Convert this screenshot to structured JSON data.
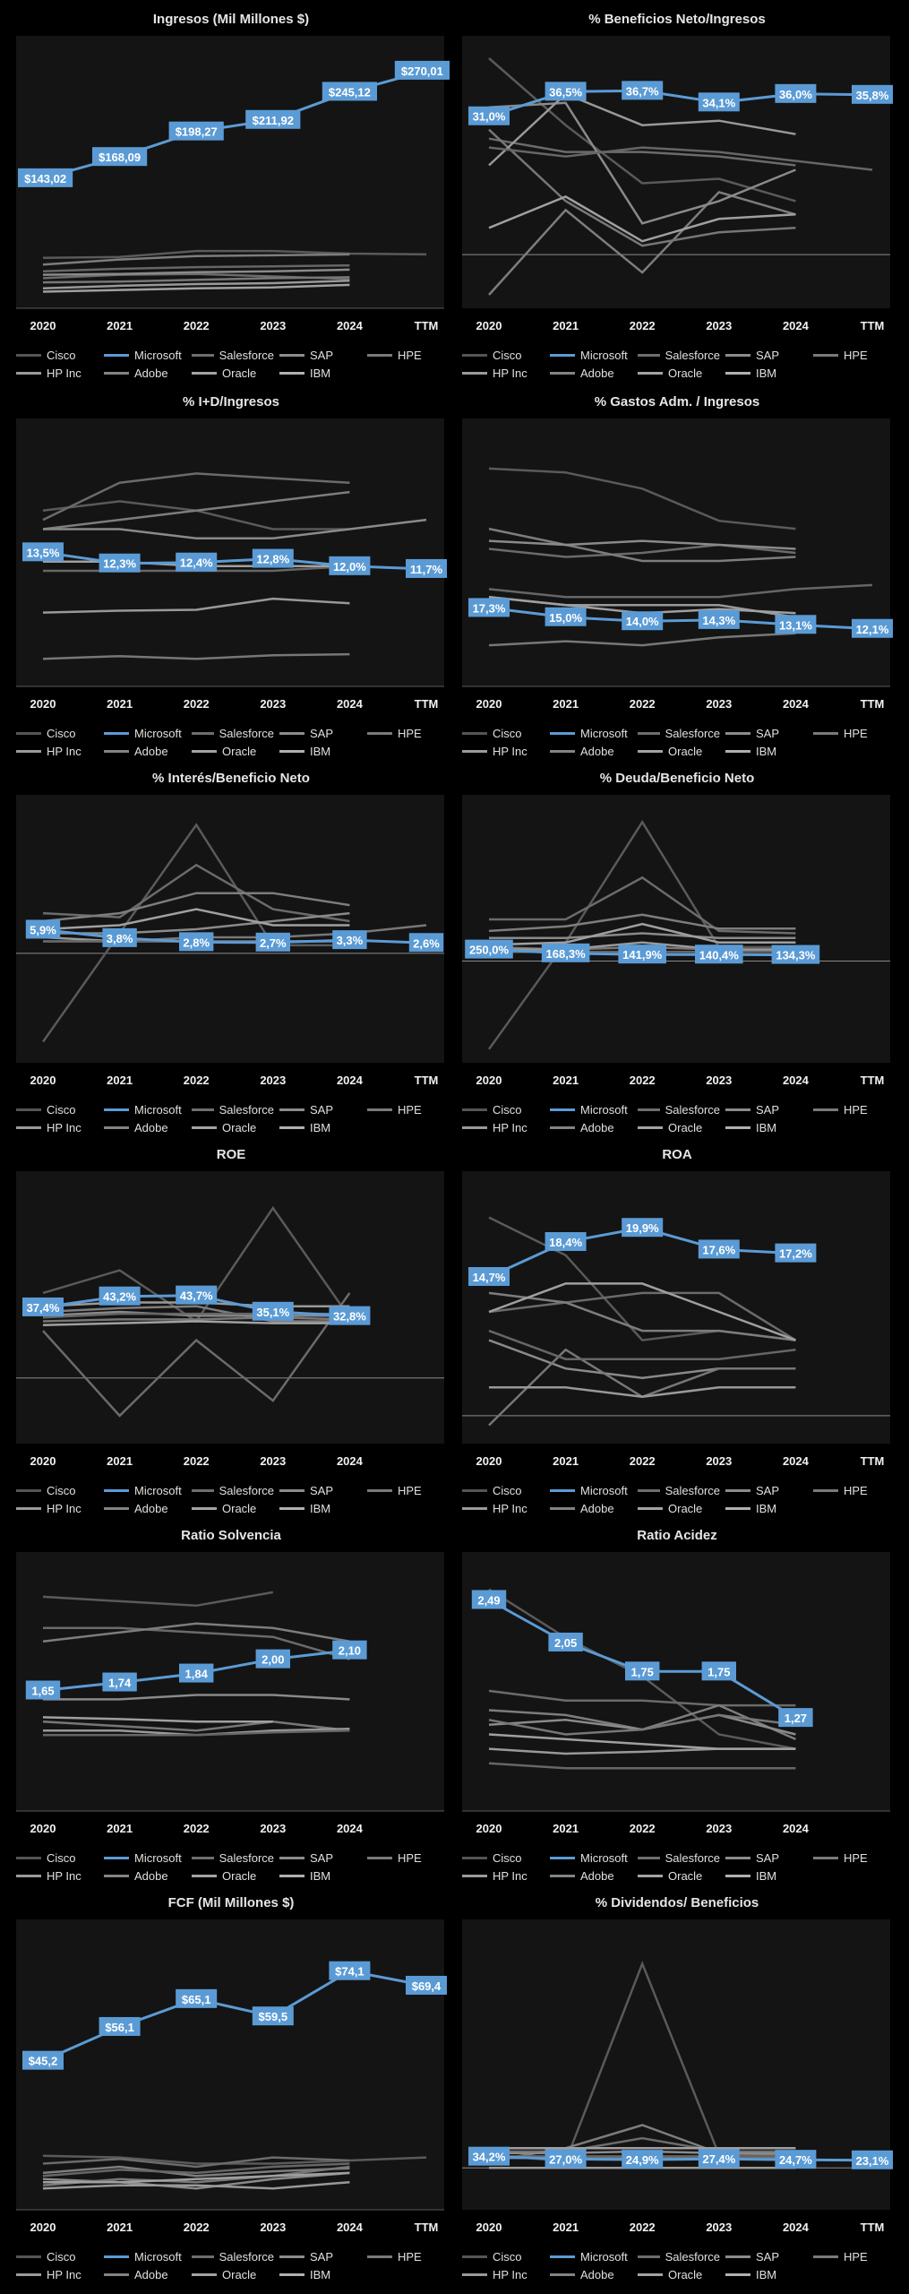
{
  "legend": {
    "series": [
      {
        "name": "Cisco",
        "color": "#555555"
      },
      {
        "name": "Microsoft",
        "color": "#5b9bd5"
      },
      {
        "name": "Salesforce",
        "color": "#6e6e6e"
      },
      {
        "name": "SAP",
        "color": "#8c8c8c"
      },
      {
        "name": "HPE",
        "color": "#7a7a7a"
      },
      {
        "name": "HP Inc",
        "color": "#9a9a9a"
      },
      {
        "name": "Adobe",
        "color": "#838383"
      },
      {
        "name": "Oracle",
        "color": "#a3a3a3"
      },
      {
        "name": "IBM",
        "color": "#b0b0b0"
      }
    ]
  },
  "colors": {
    "microsoft": "#5b9bd5",
    "label_bg": "#5b9bd5",
    "plot_bg": "#141414",
    "grey": "#8a8a8a"
  },
  "chart_data": [
    {
      "type": "line",
      "title": "Ingresos (Mil Millones $)",
      "x": [
        "2020",
        "2021",
        "2022",
        "2023",
        "2024",
        "TTM"
      ],
      "ylim": [
        0,
        290
      ],
      "highlight": {
        "name": "Microsoft",
        "values": [
          143.02,
          168.09,
          198.27,
          211.92,
          245.12,
          270.01
        ],
        "labels": [
          "$143,02",
          "$168,09",
          "$198,27",
          "$211,92",
          "$245,12",
          "$270,01"
        ]
      },
      "others": [
        [
          49,
          50,
          57,
          57,
          54,
          53
        ],
        [
          25,
          29,
          30,
          27,
          24,
          null
        ],
        [
          41,
          47,
          51,
          52,
          53,
          null
        ],
        [
          29,
          30,
          32,
          33,
          35,
          null
        ],
        [
          20,
          21,
          23,
          25,
          26,
          null
        ],
        [
          13,
          16,
          18,
          19,
          22,
          null
        ],
        [
          33,
          36,
          38,
          39,
          40,
          null
        ],
        [
          9,
          11,
          13,
          14,
          17,
          null
        ]
      ]
    },
    {
      "type": "line",
      "title": "% Beneficios Neto/Ingresos",
      "x": [
        "2020",
        "2021",
        "2022",
        "2023",
        "2024",
        "TTM"
      ],
      "ylim": [
        -10,
        45
      ],
      "highlight": {
        "name": "Microsoft",
        "values": [
          31.0,
          36.5,
          36.7,
          34.1,
          36.0,
          35.8
        ],
        "labels": [
          "31,0%",
          "36,5%",
          "36,7%",
          "34,1%",
          "36,0%",
          "35,8%"
        ]
      },
      "others": [
        [
          44,
          29,
          16,
          17,
          12,
          null
        ],
        [
          26,
          23,
          23,
          22,
          20,
          null
        ],
        [
          -9,
          10,
          -4,
          14,
          9,
          null
        ],
        [
          33,
          34,
          7,
          12,
          19,
          null
        ],
        [
          28,
          12,
          2,
          5,
          6,
          null
        ],
        [
          20,
          36,
          29,
          30,
          27,
          null
        ],
        [
          24,
          22,
          24,
          23,
          21,
          19
        ],
        [
          6,
          13,
          3,
          8,
          9,
          null
        ]
      ]
    },
    {
      "type": "line",
      "title": "% I+D/Ingresos",
      "x": [
        "2020",
        "2021",
        "2022",
        "2023",
        "2024",
        "TTM"
      ],
      "ylim": [
        0,
        26
      ],
      "highlight": {
        "name": "Microsoft",
        "values": [
          13.5,
          12.3,
          12.4,
          12.8,
          12.0,
          11.7
        ],
        "labels": [
          "13,5%",
          "12,3%",
          "12,4%",
          "12,8%",
          "12,0%",
          "11,7%"
        ]
      },
      "others": [
        [
          18,
          19,
          18,
          16,
          16,
          null
        ],
        [
          17,
          21,
          22,
          21.5,
          21,
          null
        ],
        [
          16,
          17,
          18,
          19,
          20,
          null
        ],
        [
          16,
          16,
          15,
          15,
          16,
          17
        ],
        [
          2,
          2.3,
          2,
          2.4,
          2.5,
          null
        ],
        [
          7,
          7.2,
          7.3,
          8.5,
          8,
          null
        ],
        [
          11.5,
          11.5,
          11.5,
          11.5,
          12,
          null
        ],
        [
          12.5,
          12.5,
          12,
          12,
          12,
          null
        ]
      ]
    },
    {
      "type": "line",
      "title": "% Gastos Adm. / Ingresos",
      "x": [
        "2020",
        "2021",
        "2022",
        "2023",
        "2024",
        "TTM"
      ],
      "ylim": [
        0,
        60
      ],
      "highlight": {
        "name": "Microsoft",
        "values": [
          17.3,
          15.0,
          14.0,
          14.3,
          13.1,
          12.1
        ],
        "labels": [
          "17,3%",
          "15,0%",
          "14,0%",
          "14,3%",
          "13,1%",
          "12,1%"
        ]
      },
      "others": [
        [
          52,
          51,
          47,
          39,
          37,
          null
        ],
        [
          32,
          30,
          31,
          33,
          31,
          null
        ],
        [
          37,
          33,
          29,
          29,
          30,
          null
        ],
        [
          34,
          33,
          34,
          33,
          32,
          null
        ],
        [
          8,
          9,
          8,
          10,
          11,
          null
        ],
        [
          20,
          18,
          18,
          18,
          15,
          null
        ],
        [
          22,
          20,
          20,
          20,
          22,
          23
        ],
        [
          20,
          18,
          16,
          17,
          16,
          null
        ]
      ]
    },
    {
      "type": "line",
      "title": "% Interés/Beneficio Neto",
      "x": [
        "2020",
        "2021",
        "2022",
        "2023",
        "2024",
        "TTM"
      ],
      "ylim": [
        -25,
        35
      ],
      "highlight": {
        "name": "Microsoft",
        "values": [
          5.9,
          3.8,
          2.8,
          2.7,
          3.3,
          2.6
        ],
        "labels": [
          "5,9%",
          "3,8%",
          "2,8%",
          "2,7%",
          "3,3%",
          "2,6%"
        ]
      },
      "others": [
        [
          -22,
          5,
          32,
          2,
          2,
          null
        ],
        [
          10,
          9,
          22,
          11,
          8,
          null
        ],
        [
          8,
          10,
          15,
          15,
          12,
          null
        ],
        [
          5,
          5,
          6,
          8,
          10,
          null
        ],
        [
          3,
          3,
          4,
          4,
          5,
          7
        ],
        [
          4,
          3,
          3,
          3,
          3,
          null
        ],
        [
          3,
          3,
          3,
          3,
          3,
          null
        ],
        [
          6,
          7,
          11,
          7,
          7,
          null
        ]
      ]
    },
    {
      "type": "line",
      "title": "% Deuda/Beneficio Neto",
      "x": [
        "2020",
        "2021",
        "2022",
        "2023",
        "2024",
        "TTM"
      ],
      "ylim": [
        -2000,
        3200
      ],
      "highlight": {
        "name": "Microsoft",
        "values": [
          250.0,
          168.3,
          141.9,
          140.4,
          134.3
        ],
        "labels": [
          "250,0%",
          "168,3%",
          "141,9%",
          "140,4%",
          "134,3%"
        ]
      },
      "others": [
        [
          -1900,
          400,
          3000,
          300,
          300,
          null
        ],
        [
          900,
          900,
          1800,
          650,
          600,
          null
        ],
        [
          650,
          750,
          1000,
          700,
          700,
          null
        ],
        [
          500,
          500,
          600,
          500,
          500,
          null
        ],
        [
          300,
          250,
          300,
          250,
          250,
          null
        ],
        [
          250,
          250,
          400,
          250,
          250,
          null
        ],
        [
          200,
          200,
          200,
          200,
          200,
          null
        ],
        [
          350,
          400,
          800,
          400,
          400,
          null
        ]
      ]
    },
    {
      "type": "line",
      "title": "ROE",
      "x": [
        "2020",
        "2021",
        "2022",
        "2023",
        "2024"
      ],
      "ylim": [
        -30,
        100
      ],
      "highlight": {
        "name": "Microsoft",
        "values": [
          37.4,
          43.2,
          43.7,
          35.1,
          32.8
        ],
        "labels": [
          "37,4%",
          "43,2%",
          "43,7%",
          "35,1%",
          "32,8%"
        ]
      },
      "others": [
        [
          45,
          57,
          30,
          90,
          32
        ],
        [
          25,
          -20,
          20,
          -12,
          45
        ],
        [
          35,
          37,
          38,
          30,
          30
        ],
        [
          33,
          35,
          33,
          33,
          33
        ],
        [
          30,
          31,
          31,
          32,
          31
        ],
        [
          38,
          40,
          40,
          38,
          38
        ],
        [
          32,
          34,
          34,
          34,
          34
        ],
        [
          28,
          29,
          30,
          29,
          29
        ]
      ]
    },
    {
      "type": "line",
      "title": "ROA",
      "x": [
        "2020",
        "2021",
        "2022",
        "2023",
        "2024",
        "TTM"
      ],
      "ylim": [
        -2,
        24
      ],
      "highlight": {
        "name": "Microsoft",
        "values": [
          14.7,
          18.4,
          19.9,
          17.6,
          17.2
        ],
        "labels": [
          "14,7%",
          "18,4%",
          "19,9%",
          "17,6%",
          "17,2%"
        ]
      },
      "others": [
        [
          21,
          17,
          8,
          9,
          8,
          null
        ],
        [
          11,
          12,
          13,
          13,
          8,
          null
        ],
        [
          13,
          12,
          9,
          9,
          8,
          null
        ],
        [
          8,
          5,
          4,
          5,
          5,
          null
        ],
        [
          -1,
          7,
          2,
          5,
          5,
          null
        ],
        [
          3,
          3,
          2,
          3,
          3,
          null
        ],
        [
          9,
          6,
          6,
          6,
          7,
          null
        ],
        [
          11,
          14,
          14,
          11,
          8,
          null
        ]
      ]
    },
    {
      "type": "line",
      "title": "Ratio Solvencia",
      "x": [
        "2020",
        "2021",
        "2022",
        "2023",
        "2024"
      ],
      "ylim": [
        0.4,
        3.0
      ],
      "highlight": {
        "name": "Microsoft",
        "values": [
          1.65,
          1.74,
          1.84,
          2.0,
          2.1
        ],
        "labels": [
          "1,65",
          "1,74",
          "1,84",
          "2,00",
          "2,10"
        ]
      },
      "others": [
        [
          2.7,
          2.65,
          2.6,
          2.75,
          null
        ],
        [
          2.35,
          2.35,
          2.3,
          2.25,
          2.0
        ],
        [
          2.2,
          2.3,
          2.4,
          2.35,
          2.2
        ],
        [
          1.55,
          1.55,
          1.6,
          1.6,
          1.55
        ],
        [
          1.3,
          1.25,
          1.2,
          1.3,
          1.2
        ],
        [
          1.2,
          1.2,
          1.15,
          1.2,
          1.22
        ],
        [
          1.15,
          1.15,
          1.15,
          1.18,
          1.2
        ],
        [
          1.35,
          1.33,
          1.3,
          1.3,
          null
        ]
      ]
    },
    {
      "type": "line",
      "title": "Ratio Acidez",
      "x": [
        "2020",
        "2021",
        "2022",
        "2023",
        "2024"
      ],
      "ylim": [
        0.4,
        2.8
      ],
      "highlight": {
        "name": "Microsoft",
        "values": [
          2.49,
          2.05,
          1.75,
          1.75,
          1.27
        ],
        "labels": [
          "2,49",
          "2,05",
          "1,75",
          "1,75",
          "1,27"
        ]
      },
      "others": [
        [
          2.6,
          2.1,
          1.7,
          1.1,
          0.95
        ],
        [
          1.55,
          1.45,
          1.45,
          1.4,
          1.4
        ],
        [
          1.35,
          1.3,
          1.15,
          1.4,
          1.05
        ],
        [
          1.2,
          1.25,
          1.15,
          1.3,
          1.1
        ],
        [
          1.25,
          1.1,
          1.15,
          1.3,
          1.2
        ],
        [
          0.95,
          0.9,
          0.92,
          0.95,
          0.95
        ],
        [
          0.8,
          0.75,
          0.75,
          0.75,
          0.75
        ],
        [
          1.1,
          1.05,
          1.0,
          0.95,
          0.95
        ]
      ]
    },
    {
      "type": "line",
      "title": "FCF (Mil Millones $)",
      "x": [
        "2020",
        "2021",
        "2022",
        "2023",
        "2024",
        "TTM"
      ],
      "ylim": [
        0,
        85
      ],
      "highlight": {
        "name": "Microsoft",
        "values": [
          45.2,
          56.1,
          65.1,
          59.5,
          74.1,
          69.4
        ],
        "labels": [
          "$45,2",
          "$56,1",
          "$65,1",
          "$59,5",
          "$74,1",
          "$69,4"
        ]
      },
      "others": [
        [
          14.5,
          14,
          12,
          12,
          13,
          14
        ],
        [
          12,
          13.5,
          11,
          14,
          13,
          null
        ],
        [
          9,
          11,
          8,
          9.5,
          10.5,
          null
        ],
        [
          7,
          6,
          4,
          7,
          9,
          null
        ],
        [
          5,
          7,
          6,
          8,
          11,
          null
        ],
        [
          4,
          5,
          5,
          4,
          6,
          null
        ],
        [
          8,
          10,
          9,
          11,
          12,
          null
        ],
        [
          6,
          6,
          7,
          8,
          9,
          null
        ]
      ]
    },
    {
      "type": "line",
      "title": "% Dividendos/ Beneficios",
      "x": [
        "2020",
        "2021",
        "2022",
        "2023",
        "2024",
        "TTM"
      ],
      "ylim": [
        -100,
        700
      ],
      "highlight": {
        "name": "Microsoft",
        "values": [
          34.2,
          27.0,
          24.9,
          27.4,
          24.7,
          23.1
        ],
        "labels": [
          "34,2%",
          "27,0%",
          "24,9%",
          "27,4%",
          "24,7%",
          "23,1%"
        ]
      },
      "others": [
        [
          40,
          20,
          620,
          40,
          40,
          null
        ],
        [
          50,
          50,
          90,
          50,
          50,
          null
        ],
        [
          20,
          60,
          130,
          45,
          40,
          null
        ],
        [
          45,
          45,
          50,
          45,
          45,
          null
        ],
        [
          30,
          30,
          30,
          30,
          30,
          null
        ],
        [
          0,
          0,
          0,
          0,
          0,
          null
        ],
        [
          35,
          35,
          35,
          35,
          35,
          null
        ],
        [
          60,
          60,
          60,
          60,
          60,
          null
        ]
      ]
    }
  ]
}
